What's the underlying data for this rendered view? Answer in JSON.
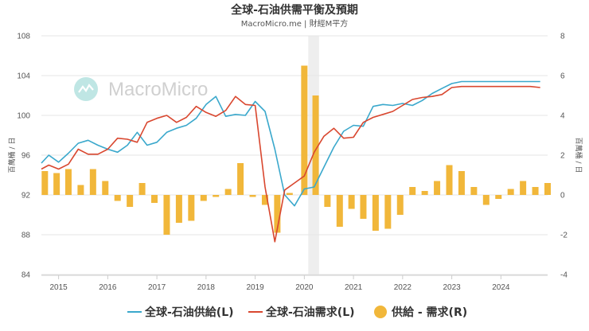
{
  "chart_data": {
    "type": "bar+line",
    "title": "全球-石油供需平衡及預期",
    "subtitle": "MacroMicro.me | 財經M平方",
    "watermark": "MacroMicro",
    "ylabel_left": "百萬桶 / 日",
    "ylabel_right": "百萬桶 / 日",
    "ylim_left": [
      84,
      108
    ],
    "ylim_right": [
      -4,
      8
    ],
    "yticks_left": [
      84,
      88,
      92,
      96,
      100,
      104,
      108
    ],
    "yticks_right": [
      -4,
      -2,
      0,
      2,
      4,
      6,
      8
    ],
    "xlim": [
      2014.65,
      2024.95
    ],
    "xticks": [
      {
        "value": 2015,
        "label": "2015"
      },
      {
        "value": 2016,
        "label": "2016"
      },
      {
        "value": 2017,
        "label": "2017"
      },
      {
        "value": 2018,
        "label": "2018"
      },
      {
        "value": 2019,
        "label": "2019"
      },
      {
        "value": 2020,
        "label": "2020"
      },
      {
        "value": 2021,
        "label": "2021"
      },
      {
        "value": 2022,
        "label": "2022"
      },
      {
        "value": 2023,
        "label": "2023"
      },
      {
        "value": 2024,
        "label": "2024"
      }
    ],
    "shaded_region": [
      2020.08,
      2020.3
    ],
    "grid": true,
    "legend_position": "bottom",
    "series": [
      {
        "name": "全球-石油供給(L)",
        "type": "line",
        "axis": "left",
        "color": "#3aa8cc",
        "points": [
          [
            2014.65,
            95.2
          ],
          [
            2014.8,
            96.0
          ],
          [
            2015.0,
            95.3
          ],
          [
            2015.2,
            96.2
          ],
          [
            2015.4,
            97.2
          ],
          [
            2015.6,
            97.5
          ],
          [
            2015.8,
            97.0
          ],
          [
            2016.0,
            96.6
          ],
          [
            2016.2,
            96.3
          ],
          [
            2016.4,
            97.0
          ],
          [
            2016.6,
            98.3
          ],
          [
            2016.8,
            97.0
          ],
          [
            2017.0,
            97.3
          ],
          [
            2017.2,
            98.3
          ],
          [
            2017.4,
            98.7
          ],
          [
            2017.6,
            99.0
          ],
          [
            2017.8,
            99.7
          ],
          [
            2018.0,
            101.1
          ],
          [
            2018.2,
            101.9
          ],
          [
            2018.4,
            99.9
          ],
          [
            2018.6,
            100.1
          ],
          [
            2018.8,
            100.0
          ],
          [
            2019.0,
            101.4
          ],
          [
            2019.2,
            100.4
          ],
          [
            2019.4,
            96.6
          ],
          [
            2019.6,
            92.0
          ],
          [
            2019.8,
            90.9
          ],
          [
            2020.0,
            92.6
          ],
          [
            2020.2,
            92.8
          ],
          [
            2020.4,
            94.8
          ],
          [
            2020.6,
            96.8
          ],
          [
            2020.8,
            98.4
          ],
          [
            2021.0,
            99.0
          ],
          [
            2021.2,
            98.9
          ],
          [
            2021.4,
            100.9
          ],
          [
            2021.6,
            101.1
          ],
          [
            2021.8,
            101.0
          ],
          [
            2022.0,
            101.2
          ],
          [
            2022.2,
            101.0
          ],
          [
            2022.4,
            101.5
          ],
          [
            2022.6,
            102.2
          ],
          [
            2022.8,
            102.7
          ],
          [
            2023.0,
            103.2
          ],
          [
            2023.2,
            103.4
          ],
          [
            2023.35,
            103.4
          ],
          [
            2023.5,
            103.4
          ],
          [
            2023.65,
            103.4
          ],
          [
            2023.8,
            103.4
          ],
          [
            2024.0,
            103.4
          ],
          [
            2024.2,
            103.4
          ],
          [
            2024.4,
            103.4
          ],
          [
            2024.6,
            103.4
          ],
          [
            2024.8,
            103.4
          ]
        ]
      },
      {
        "name": "全球-石油需求(L)",
        "type": "line",
        "axis": "left",
        "color": "#d9472f",
        "points": [
          [
            2014.65,
            94.6
          ],
          [
            2014.8,
            95.0
          ],
          [
            2015.0,
            94.6
          ],
          [
            2015.2,
            95.1
          ],
          [
            2015.4,
            96.6
          ],
          [
            2015.6,
            96.1
          ],
          [
            2015.8,
            96.1
          ],
          [
            2016.0,
            96.6
          ],
          [
            2016.2,
            97.7
          ],
          [
            2016.4,
            97.6
          ],
          [
            2016.6,
            97.3
          ],
          [
            2016.8,
            99.3
          ],
          [
            2017.0,
            99.7
          ],
          [
            2017.2,
            100.0
          ],
          [
            2017.4,
            99.3
          ],
          [
            2017.6,
            99.8
          ],
          [
            2017.8,
            100.9
          ],
          [
            2018.0,
            100.3
          ],
          [
            2018.2,
            99.9
          ],
          [
            2018.4,
            100.5
          ],
          [
            2018.6,
            101.9
          ],
          [
            2018.8,
            101.1
          ],
          [
            2019.0,
            101.0
          ],
          [
            2019.2,
            92.8
          ],
          [
            2019.4,
            87.3
          ],
          [
            2019.6,
            92.5
          ],
          [
            2019.8,
            93.2
          ],
          [
            2020.0,
            93.9
          ],
          [
            2020.2,
            96.3
          ],
          [
            2020.4,
            97.9
          ],
          [
            2020.6,
            98.7
          ],
          [
            2020.8,
            97.7
          ],
          [
            2021.0,
            97.8
          ],
          [
            2021.2,
            99.3
          ],
          [
            2021.4,
            99.8
          ],
          [
            2021.6,
            100.1
          ],
          [
            2021.8,
            100.4
          ],
          [
            2022.0,
            101.0
          ],
          [
            2022.2,
            101.6
          ],
          [
            2022.4,
            101.8
          ],
          [
            2022.6,
            101.9
          ],
          [
            2022.8,
            102.1
          ],
          [
            2023.0,
            102.8
          ],
          [
            2023.2,
            102.9
          ],
          [
            2023.35,
            102.9
          ],
          [
            2023.5,
            102.9
          ],
          [
            2023.65,
            102.9
          ],
          [
            2023.8,
            102.9
          ],
          [
            2024.0,
            102.9
          ],
          [
            2024.2,
            102.9
          ],
          [
            2024.4,
            102.9
          ],
          [
            2024.6,
            102.9
          ],
          [
            2024.8,
            102.8
          ]
        ]
      },
      {
        "name": "供給 - 需求(R)",
        "type": "bar",
        "axis": "right",
        "color": "#f1b73a",
        "points": [
          [
            2014.72,
            1.2
          ],
          [
            2014.96,
            1.1
          ],
          [
            2015.2,
            1.3
          ],
          [
            2015.45,
            0.5
          ],
          [
            2015.7,
            1.3
          ],
          [
            2015.95,
            0.7
          ],
          [
            2016.2,
            -0.3
          ],
          [
            2016.45,
            -0.6
          ],
          [
            2016.7,
            0.6
          ],
          [
            2016.95,
            -0.4
          ],
          [
            2017.2,
            -2.0
          ],
          [
            2017.45,
            -1.4
          ],
          [
            2017.7,
            -1.3
          ],
          [
            2017.95,
            -0.3
          ],
          [
            2018.2,
            -0.1
          ],
          [
            2018.45,
            0.3
          ],
          [
            2018.7,
            1.6
          ],
          [
            2018.95,
            -0.1
          ],
          [
            2019.2,
            -0.5
          ],
          [
            2019.45,
            -1.9
          ],
          [
            2019.7,
            0.1
          ],
          [
            2020.0,
            6.5
          ],
          [
            2020.23,
            5.0
          ],
          [
            2020.47,
            -0.6
          ],
          [
            2020.72,
            -1.6
          ],
          [
            2020.96,
            -0.7
          ],
          [
            2021.2,
            -1.2
          ],
          [
            2021.45,
            -1.8
          ],
          [
            2021.7,
            -1.7
          ],
          [
            2021.95,
            -1.0
          ],
          [
            2022.2,
            0.4
          ],
          [
            2022.45,
            0.2
          ],
          [
            2022.7,
            0.7
          ],
          [
            2022.95,
            1.5
          ],
          [
            2023.2,
            1.2
          ],
          [
            2023.45,
            0.4
          ],
          [
            2023.7,
            -0.5
          ],
          [
            2023.95,
            -0.2
          ],
          [
            2024.2,
            0.3
          ],
          [
            2024.45,
            0.7
          ],
          [
            2024.7,
            0.4
          ],
          [
            2024.95,
            0.6
          ]
        ]
      }
    ]
  }
}
